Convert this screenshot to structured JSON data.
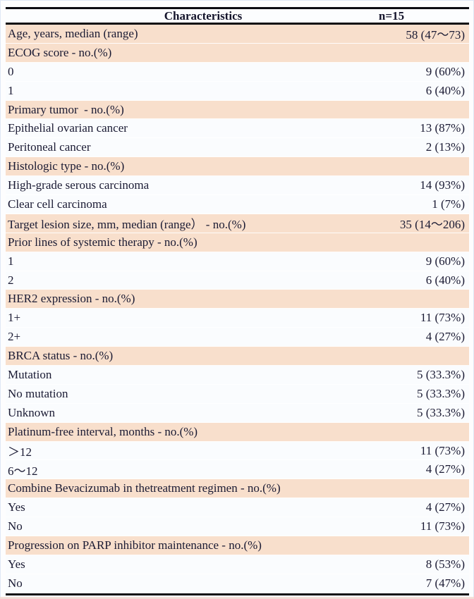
{
  "table": {
    "header": {
      "characteristics_label": "Characteristics",
      "n_label": "n=15"
    },
    "rows": [
      {
        "label": "Age, years, median (range)",
        "value": "58 (47～73)",
        "shade": "highlight"
      },
      {
        "label": "ECOG score - no.(%)",
        "value": "",
        "shade": "highlight"
      },
      {
        "label": "0",
        "value": "9 (60%)",
        "shade": "plain"
      },
      {
        "label": "1",
        "value": "6 (40%)",
        "shade": "plain"
      },
      {
        "label": "Primary tumor  - no.(%)",
        "value": "",
        "shade": "highlight"
      },
      {
        "label": "Epithelial ovarian cancer",
        "value": "13 (87%)",
        "shade": "plain"
      },
      {
        "label": "Peritoneal cancer",
        "value": "2 (13%)",
        "shade": "plain"
      },
      {
        "label": "Histologic type - no.(%)",
        "value": "",
        "shade": "highlight"
      },
      {
        "label": "High-grade serous carcinoma",
        "value": "14 (93%)",
        "shade": "plain"
      },
      {
        "label": "Clear cell carcinoma",
        "value": "1 (7%)",
        "shade": "plain"
      },
      {
        "label": "Target lesion size, mm, median (range） - no.(%)",
        "value": "35 (14～206)",
        "shade": "highlight"
      },
      {
        "label": "Prior lines of systemic therapy - no.(%)",
        "value": "",
        "shade": "highlight"
      },
      {
        "label": "1",
        "value": "9 (60%)",
        "shade": "plain"
      },
      {
        "label": "2",
        "value": "6 (40%)",
        "shade": "plain"
      },
      {
        "label": "HER2 expression - no.(%)",
        "value": "",
        "shade": "highlight"
      },
      {
        "label": "1+",
        "value": "11 (73%)",
        "shade": "plain"
      },
      {
        "label": "2+",
        "value": "4 (27%)",
        "shade": "plain"
      },
      {
        "label": "BRCA status - no.(%)",
        "value": "",
        "shade": "highlight"
      },
      {
        "label": "Mutation",
        "value": "5 (33.3%)",
        "shade": "plain"
      },
      {
        "label": "No mutation",
        "value": "5 (33.3%)",
        "shade": "plain"
      },
      {
        "label": "Unknown",
        "value": "5 (33.3%)",
        "shade": "plain"
      },
      {
        "label": "Platinum-free interval, months - no.(%)",
        "value": "",
        "shade": "highlight"
      },
      {
        "label": "＞12",
        "value": "11 (73%)",
        "shade": "plain"
      },
      {
        "label": "6～12",
        "value": "4 (27%)",
        "shade": "plain"
      },
      {
        "label": "Combine Bevacizumab in thetreatment regimen - no.(%)",
        "value": "",
        "shade": "highlight"
      },
      {
        "label": "Yes",
        "value": "4 (27%)",
        "shade": "plain"
      },
      {
        "label": "No",
        "value": "11 (73%)",
        "shade": "plain"
      },
      {
        "label": "Progression on PARP inhibitor maintenance - no.(%)",
        "value": "",
        "shade": "highlight"
      },
      {
        "label": "Yes",
        "value": "8 (53%)",
        "shade": "plain"
      },
      {
        "label": "No",
        "value": "7 (47%)",
        "shade": "plain"
      }
    ]
  },
  "colors": {
    "highlight_row_bg": "#f8dfcc",
    "plain_row_bg": "#fafcfe",
    "rule": "#0d0d12",
    "text": "#1a1a33"
  }
}
